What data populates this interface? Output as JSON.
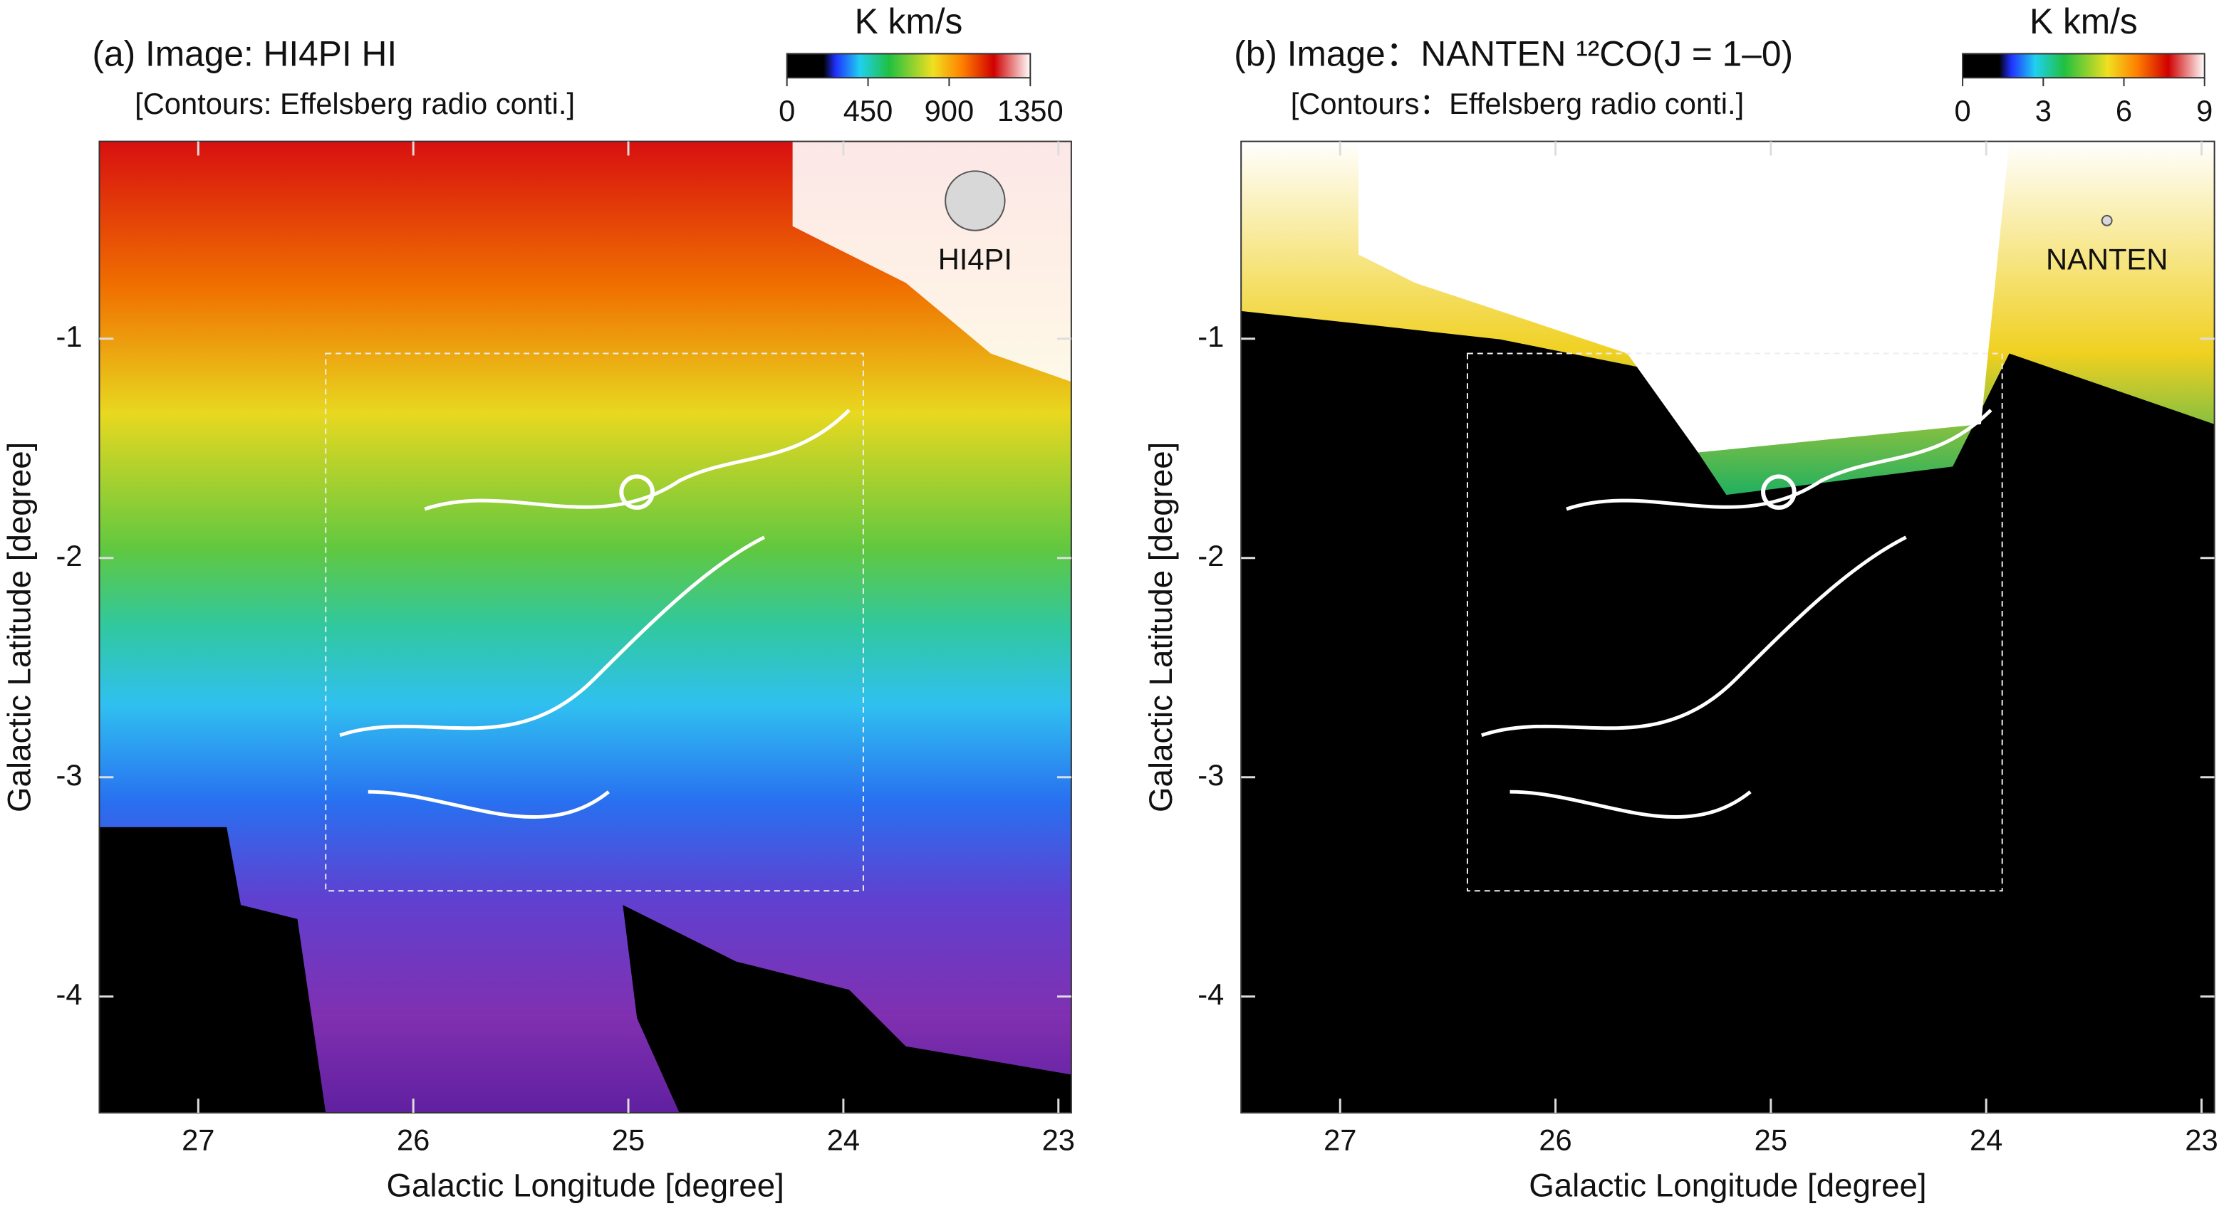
{
  "chart_data": [
    {
      "type": "image",
      "title": "(a) Image: HI4PI HI",
      "subtitle": "[Contours: Effelsberg radio conti.]",
      "colorbar_label": "K km/s",
      "clim": [
        0,
        1350
      ],
      "cticks": [
        0,
        450,
        900,
        1350
      ],
      "xlabel": "Galactic Longitude [degree]",
      "ylabel": "Galactic Latitude [degree]",
      "xlim": [
        27.46,
        22.94
      ],
      "xticks": [
        27,
        26,
        25,
        24,
        23
      ],
      "ylim": [
        -4.53,
        -0.1
      ],
      "yticks": [
        -1,
        -2,
        -3,
        -4
      ],
      "beam_label": "HI4PI"
    },
    {
      "type": "image",
      "title": "(b) Image：NANTEN ¹²CO(J = 1–0)",
      "subtitle": "[Contours：Effelsberg radio conti.]",
      "colorbar_label": "K km/s",
      "clim": [
        0,
        9
      ],
      "cticks": [
        0,
        3,
        6,
        9
      ],
      "xlabel": "Galactic Longitude [degree]",
      "ylabel": "Galactic Latitude [degree]",
      "xlim": [
        27.46,
        22.94
      ],
      "xticks": [
        27,
        26,
        25,
        24,
        23
      ],
      "ylim": [
        -4.53,
        -0.1
      ],
      "yticks": [
        -1,
        -2,
        -3,
        -4
      ],
      "beam_label": "NANTEN"
    }
  ]
}
